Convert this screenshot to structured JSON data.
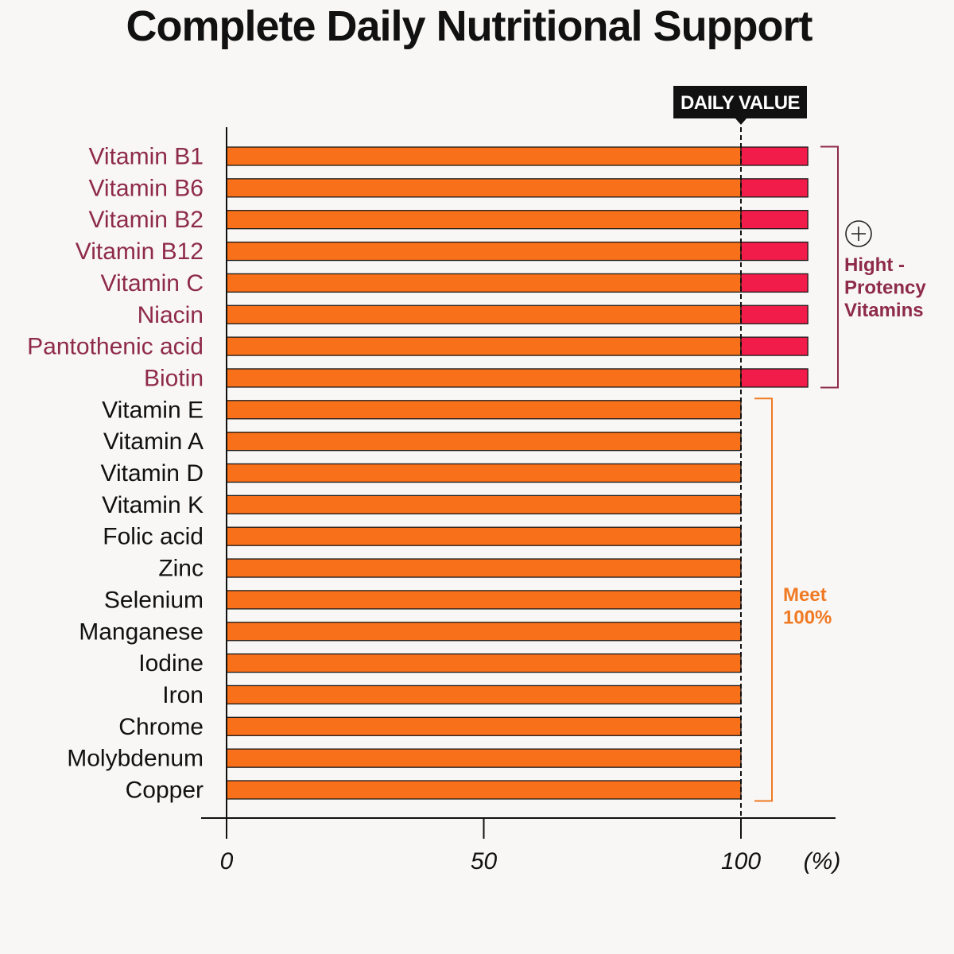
{
  "chart_data": {
    "type": "bar",
    "orientation": "horizontal",
    "title": "Complete Daily Nutritional Support",
    "categories": [
      "Vitamin B1",
      "Vitamin B6",
      "Vitamin B2",
      "Vitamin B12",
      "Vitamin C",
      "Niacin",
      "Pantothenic acid",
      "Biotin",
      "Vitamin E",
      "Vitamin A",
      "Vitamin D",
      "Vitamin K",
      "Folic acid",
      "Zinc",
      "Selenium",
      "Manganese",
      "Iodine",
      "Iron",
      "Chrome",
      "Molybdenum",
      "Copper"
    ],
    "values": [
      113,
      113,
      113,
      113,
      113,
      113,
      113,
      113,
      100,
      100,
      100,
      100,
      100,
      100,
      100,
      100,
      100,
      100,
      100,
      100,
      100
    ],
    "xlim": [
      0,
      120
    ],
    "x_ticks": [
      "0",
      "50",
      "100"
    ],
    "x_tick_values": [
      0,
      50,
      100
    ],
    "x_unit": "(%)",
    "reference_line": {
      "value": 100,
      "label": "DAILY VALUE"
    },
    "groups": [
      {
        "label_lines": [
          "Hight -",
          "Protency",
          "Vitamins"
        ],
        "count": 8,
        "color": "#8e2a4a",
        "icon": "plus-circle-icon"
      },
      {
        "label_lines": [
          "Meet",
          "100%"
        ],
        "count": 13,
        "color": "#f07a23"
      }
    ],
    "colors": {
      "bar": "#f87019",
      "excess": "#f21c4a",
      "bar_outline": "#1a1a1a",
      "high_label": "#8e2a4a",
      "normal_label": "#111111",
      "meet_group": "#f07a23",
      "axis": "#111111"
    },
    "grid": false,
    "legend": "none"
  }
}
